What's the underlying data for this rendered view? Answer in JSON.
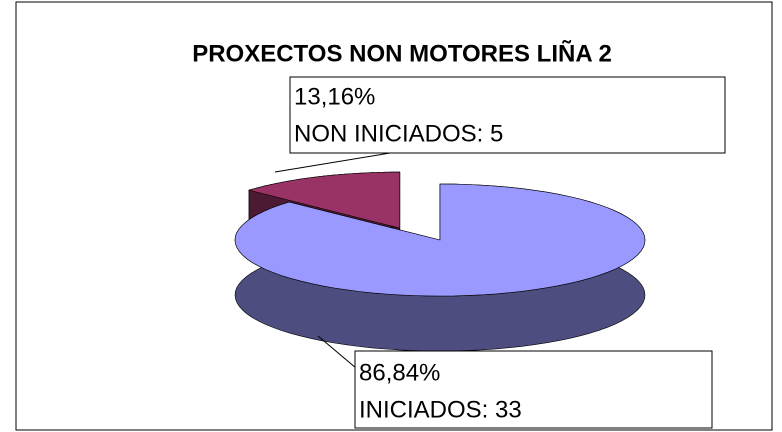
{
  "chart_data": {
    "type": "pie",
    "title": "PROXECTOS NON MOTORES LIÑA 2",
    "categories": [
      "NON INICIADOS",
      "INICIADOS"
    ],
    "values": [
      13.16,
      86.84
    ],
    "value_labels": [
      "13,16%",
      "86,84%"
    ],
    "labels": [
      "NON INICIADOS: 5",
      "INICIADOS: 33"
    ],
    "colors": [
      "#993366",
      "#9999ff"
    ]
  }
}
